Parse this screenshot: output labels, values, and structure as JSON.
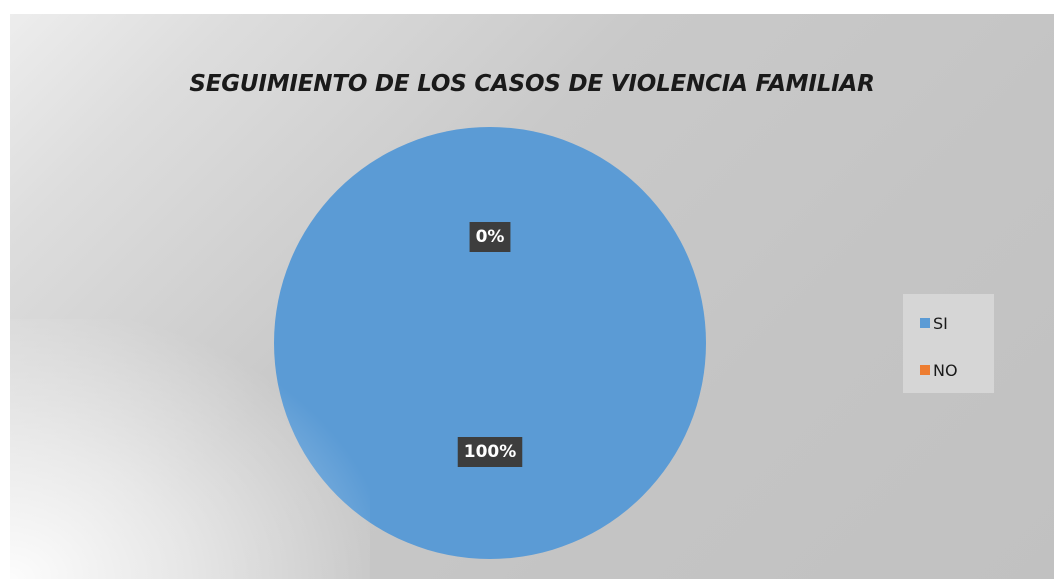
{
  "chart_data": {
    "type": "pie",
    "title": "SEGUIMIENTO DE LOS CASOS DE VIOLENCIA FAMILIAR",
    "categories": [
      "SI",
      "NO"
    ],
    "values": [
      100,
      0
    ],
    "data_labels": [
      "100%",
      "0%"
    ],
    "colors": [
      "#5b9bd5",
      "#ed7d31"
    ],
    "legend_position": "right"
  }
}
